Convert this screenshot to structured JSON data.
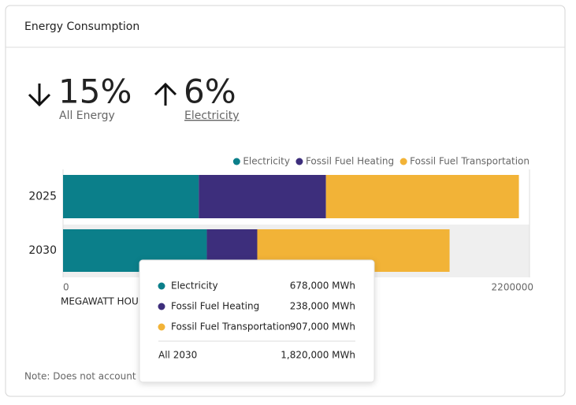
{
  "card": {
    "title": "Energy Consumption"
  },
  "kpis": [
    {
      "value": "15%",
      "label": "All Energy"
    },
    {
      "value": "6%",
      "label": "Electricity"
    }
  ],
  "chart_data": {
    "type": "stacked-bar-horizontal",
    "categories": [
      "2025",
      "2030"
    ],
    "series": [
      {
        "name": "Electricity",
        "color": "#0b7f8a",
        "values": [
          640000,
          678000
        ]
      },
      {
        "name": "Fossil Fuel Heating",
        "color": "#3d2e7c",
        "values": [
          600000,
          238000
        ]
      },
      {
        "name": "Fossil Fuel Transportation",
        "color": "#f2b337",
        "values": [
          910000,
          907000
        ]
      }
    ],
    "xlim": [
      0,
      2200000
    ],
    "xticks": [
      0,
      2200000
    ],
    "xlabel": "MEGAWATT HOURS",
    "legend": "top-right"
  },
  "tooltip": {
    "values": [
      "678,000 MWh",
      "238,000 MWh",
      "907,000 MWh"
    ],
    "total_label": "All 2030",
    "total": "1,820,000 MWh"
  },
  "note": "Note: Does not account for"
}
